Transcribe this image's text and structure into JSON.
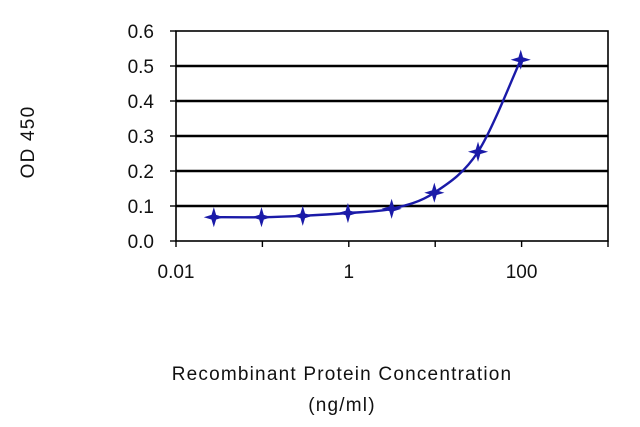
{
  "chart_data": {
    "type": "line",
    "title": "",
    "xlabel_lines": [
      "Recombinant Protein Concentration",
      "(ng/ml)"
    ],
    "ylabel": "OD 450",
    "x_scale": "log10",
    "xlim": [
      0.01,
      1000
    ],
    "ylim": [
      0.0,
      0.6
    ],
    "x_tick_values": [
      0.01,
      1,
      100
    ],
    "x_tick_labels": [
      "0.01",
      "1",
      "100"
    ],
    "y_tick_values": [
      0.0,
      0.1,
      0.2,
      0.3,
      0.4,
      0.5,
      0.6
    ],
    "y_tick_labels": [
      "0.0",
      "0.1",
      "0.2",
      "0.3",
      "0.4",
      "0.5",
      "0.6"
    ],
    "grid": "horizontal",
    "legend": "none",
    "series": [
      {
        "color": "#1a1aa8",
        "marker": "star",
        "x": [
          0.0274,
          0.0976,
          0.293,
          0.977,
          3.13,
          9.77,
          31.3,
          97.7
        ],
        "y": [
          0.068,
          0.068,
          0.072,
          0.08,
          0.092,
          0.138,
          0.255,
          0.518
        ]
      }
    ]
  }
}
